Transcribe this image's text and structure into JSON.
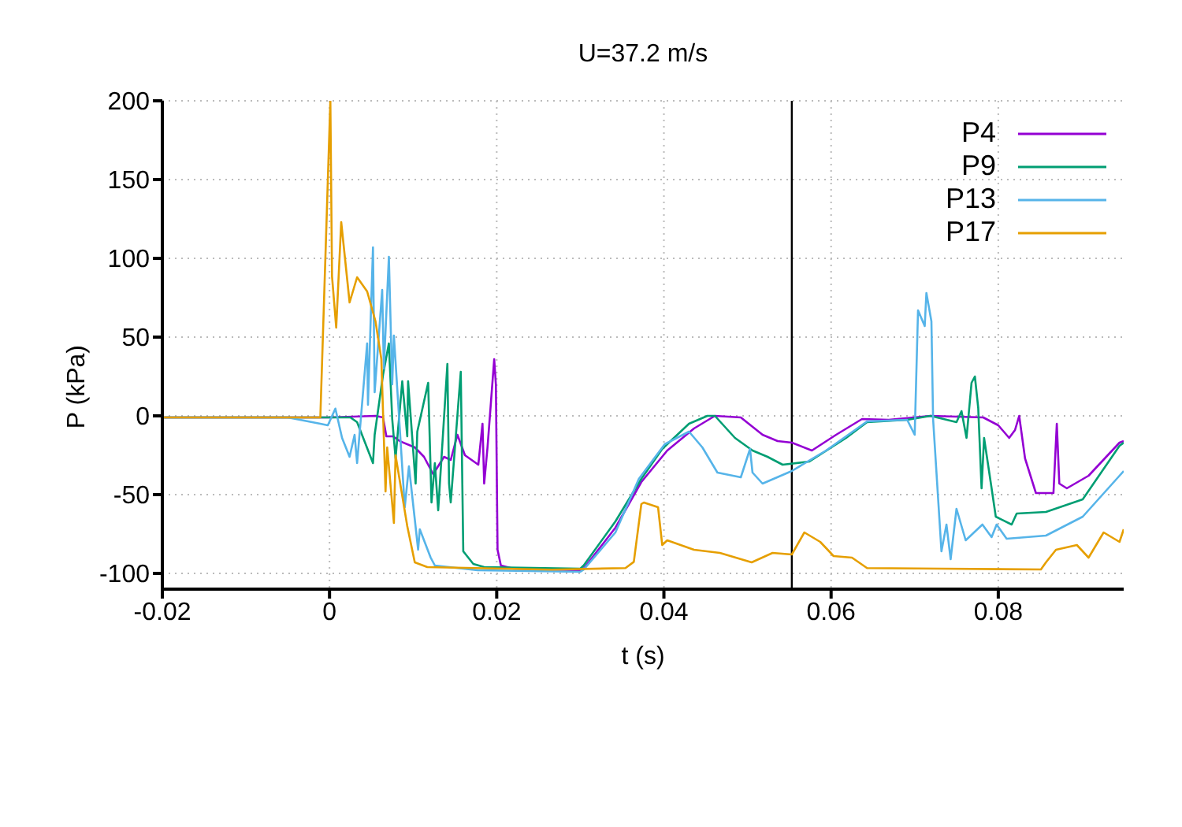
{
  "chart_data": {
    "type": "line",
    "title": "U=37.2 m/s",
    "xlabel": "t (s)",
    "ylabel": "P (kPa)",
    "xlim": [
      -0.02,
      0.095
    ],
    "xticks": [
      -0.02,
      0,
      0.02,
      0.04,
      0.06,
      0.08
    ],
    "ylim": [
      -110,
      200
    ],
    "yticks": [
      -100,
      -50,
      0,
      50,
      100,
      150,
      200
    ],
    "grid": true,
    "legend": "top right",
    "marker": "none",
    "line_style": "solid",
    "ref_lines": [
      {
        "axis": "x",
        "value": 0.0553,
        "color": "#000000"
      }
    ],
    "series": [
      {
        "name": "P4",
        "color": "#9400d3",
        "x": [
          -0.02,
          0.0,
          0.0055,
          0.0064,
          0.0068,
          0.0076,
          0.0084,
          0.0102,
          0.0113,
          0.0124,
          0.0137,
          0.0145,
          0.0153,
          0.0162,
          0.0178,
          0.0183,
          0.0185,
          0.0189,
          0.0197,
          0.0199,
          0.0201,
          0.0205,
          0.022,
          0.03,
          0.0304,
          0.0342,
          0.0373,
          0.0404,
          0.0436,
          0.0461,
          0.0492,
          0.0518,
          0.0536,
          0.0553,
          0.0577,
          0.0606,
          0.0637,
          0.0669,
          0.0719,
          0.0782,
          0.08,
          0.0813,
          0.082,
          0.0825,
          0.0832,
          0.0845,
          0.0857,
          0.0866,
          0.087,
          0.0873,
          0.0882,
          0.0908,
          0.0945,
          0.095
        ],
        "values": [
          -1,
          -1,
          0,
          -1,
          -13,
          -13,
          -16,
          -20,
          -26,
          -37,
          -26,
          -28,
          -12,
          -25,
          -31,
          -5,
          -43,
          -20,
          36,
          20,
          -85,
          -95,
          -97,
          -98,
          -97,
          -71,
          -42,
          -22,
          -8,
          0,
          -1,
          -12,
          -16,
          -17,
          -22,
          -12,
          -2,
          -2.5,
          0,
          -1,
          -6,
          -14,
          -9,
          0,
          -27,
          -49,
          -49,
          -49,
          -5,
          -43,
          -46,
          -38,
          -17,
          -16
        ]
      },
      {
        "name": "P9",
        "color": "#009e73",
        "x": [
          -0.02,
          0.0,
          0.0025,
          0.0033,
          0.0052,
          0.0054,
          0.0064,
          0.0071,
          0.0075,
          0.0079,
          0.0087,
          0.0093,
          0.0094,
          0.0103,
          0.0105,
          0.0118,
          0.0122,
          0.0126,
          0.013,
          0.0141,
          0.0143,
          0.0145,
          0.0157,
          0.016,
          0.0172,
          0.0185,
          0.03,
          0.0304,
          0.0342,
          0.0373,
          0.0398,
          0.043,
          0.0452,
          0.0461,
          0.0485,
          0.0506,
          0.0524,
          0.0542,
          0.0574,
          0.0618,
          0.0643,
          0.0691,
          0.0719,
          0.075,
          0.0756,
          0.0762,
          0.0768,
          0.0772,
          0.0776,
          0.078,
          0.0783,
          0.0792,
          0.0797,
          0.0816,
          0.0822,
          0.0857,
          0.0901,
          0.0945,
          0.095
        ],
        "values": [
          -1,
          -1,
          -1,
          -4,
          -30,
          -12,
          26,
          46,
          -2,
          -27,
          22,
          -13,
          22,
          -43,
          -10,
          21,
          -55,
          -30,
          -60,
          33,
          -43,
          -55,
          28,
          -86,
          -94,
          -96,
          -97,
          -95,
          -67,
          -40,
          -21,
          -5,
          0,
          0,
          -14,
          -22,
          -26,
          -31,
          -29,
          -14,
          -4,
          -2.5,
          0,
          -4,
          3,
          -14,
          21,
          25,
          5,
          -46,
          -14,
          -46,
          -64,
          -69,
          -62,
          -61,
          -53,
          -19,
          -17
        ]
      },
      {
        "name": "P13",
        "color": "#56b4e9",
        "x": [
          -0.02,
          -0.005,
          -0.0011,
          -0.0002,
          0.0007,
          0.0015,
          0.0024,
          0.003,
          0.0033,
          0.0045,
          0.0046,
          0.0052,
          0.0054,
          0.0063,
          0.0065,
          0.0071,
          0.0075,
          0.0077,
          0.009,
          0.0095,
          0.0106,
          0.0108,
          0.0121,
          0.0126,
          0.0177,
          0.03,
          0.0304,
          0.0342,
          0.037,
          0.0401,
          0.043,
          0.0446,
          0.0464,
          0.0492,
          0.0503,
          0.0506,
          0.0518,
          0.0553,
          0.0594,
          0.0643,
          0.0691,
          0.07,
          0.0704,
          0.0712,
          0.0714,
          0.072,
          0.0722,
          0.0732,
          0.0738,
          0.0743,
          0.075,
          0.0761,
          0.0781,
          0.0792,
          0.0798,
          0.081,
          0.0857,
          0.0901,
          0.0945,
          0.095
        ],
        "values": [
          -1,
          -1,
          -5,
          -6,
          4.6,
          -14,
          -26,
          -12,
          -30,
          46,
          7,
          107,
          15,
          80,
          30,
          101,
          20,
          51,
          -58,
          -32,
          -85,
          -72,
          -90,
          -95,
          -98,
          -99,
          -97.6,
          -74,
          -40,
          -18,
          -10,
          -20,
          -36,
          -39,
          -21,
          -36,
          -43,
          -35,
          -22,
          -3.5,
          -2.5,
          -12,
          67,
          57,
          78,
          60,
          -2,
          -86,
          -69,
          -91,
          -59,
          -79,
          -69,
          -77,
          -69,
          -78,
          -76,
          -64,
          -38,
          -35
        ]
      },
      {
        "name": "P17",
        "color": "#e69f00",
        "x": [
          -0.02,
          -0.0011,
          0.0001,
          0.0003,
          0.0008,
          0.0014,
          0.0024,
          0.0033,
          0.0045,
          0.0055,
          0.0062,
          0.0067,
          0.0069,
          0.0077,
          0.0079,
          0.0093,
          0.0102,
          0.0117,
          0.0266,
          0.0354,
          0.0364,
          0.0373,
          0.0376,
          0.0393,
          0.0398,
          0.0404,
          0.0436,
          0.0467,
          0.0505,
          0.053,
          0.0553,
          0.0568,
          0.0587,
          0.0603,
          0.0625,
          0.0643,
          0.0732,
          0.0851,
          0.0857,
          0.0869,
          0.0894,
          0.0908,
          0.0926,
          0.0945,
          0.095
        ],
        "values": [
          -1,
          -1,
          200,
          88.6,
          56,
          123,
          72,
          88,
          79,
          60,
          36,
          -48,
          -20,
          -68,
          -25,
          -70,
          -93,
          -96,
          -97.6,
          -96.6,
          -92.7,
          -56,
          -55,
          -58,
          -82,
          -79,
          -85,
          -87,
          -93,
          -87,
          -88,
          -74,
          -80,
          -89,
          -90,
          -96.6,
          -97,
          -97.5,
          -93,
          -85,
          -82,
          -90,
          -74,
          -80,
          -72
        ]
      }
    ]
  }
}
